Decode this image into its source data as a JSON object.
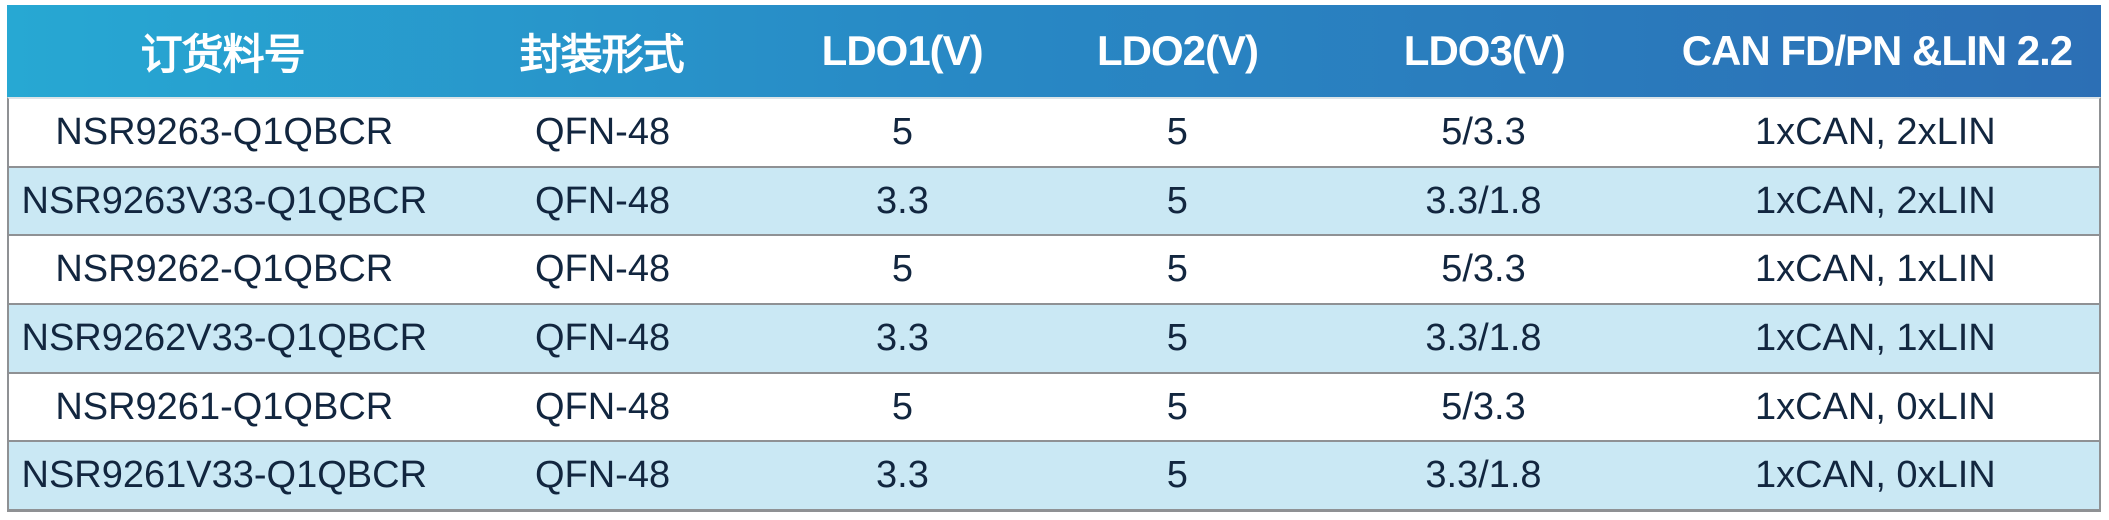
{
  "table": {
    "title_semantic": "ordering-information-table",
    "columns": [
      {
        "label": "订货料号"
      },
      {
        "label": "封装形式"
      },
      {
        "label": "LDO1(V)"
      },
      {
        "label": "LDO2(V)"
      },
      {
        "label": "LDO3(V)"
      },
      {
        "label": "CAN FD/PN &LIN 2.2"
      }
    ],
    "rows": [
      {
        "cells": [
          "NSR9263-Q1QBCR",
          "QFN-48",
          "5",
          "5",
          "5/3.3",
          "1xCAN, 2xLIN"
        ]
      },
      {
        "cells": [
          "NSR9263V33-Q1QBCR",
          "QFN-48",
          "3.3",
          "5",
          "3.3/1.8",
          "1xCAN, 2xLIN"
        ]
      },
      {
        "cells": [
          "NSR9262-Q1QBCR",
          "QFN-48",
          "5",
          "5",
          "5/3.3",
          "1xCAN, 1xLIN"
        ]
      },
      {
        "cells": [
          "NSR9262V33-Q1QBCR",
          "QFN-48",
          "3.3",
          "5",
          "3.3/1.8",
          "1xCAN, 1xLIN"
        ]
      },
      {
        "cells": [
          "NSR9261-Q1QBCR",
          "QFN-48",
          "5",
          "5",
          "5/3.3",
          "1xCAN, 0xLIN"
        ]
      },
      {
        "cells": [
          "NSR9261V33-Q1QBCR",
          "QFN-48",
          "3.3",
          "5",
          "3.3/1.8",
          "1xCAN, 0xLIN"
        ]
      }
    ],
    "colors": {
      "header_gradient_start": "#27A8D3",
      "header_gradient_end": "#2C6FB5",
      "header_text": "#FFFFFF",
      "row_alt_bg": "#CAE8F4",
      "row_bg": "#FFFFFF",
      "body_text": "#12263F",
      "border_gray": "#8F9194"
    }
  }
}
